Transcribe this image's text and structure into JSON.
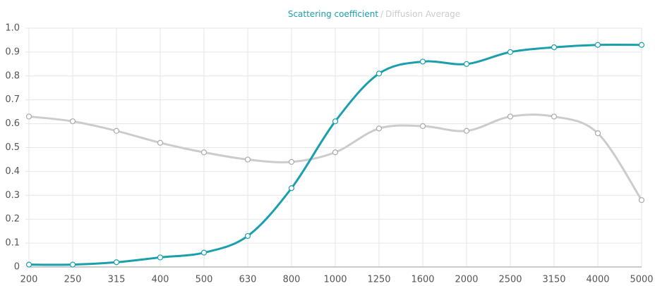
{
  "chart_data": {
    "type": "line",
    "legend_separator": "/",
    "categories": [
      "200",
      "250",
      "315",
      "400",
      "500",
      "630",
      "800",
      "1000",
      "1250",
      "1600",
      "2000",
      "2500",
      "3150",
      "4000",
      "5000"
    ],
    "series": [
      {
        "name": "Scattering coefficient",
        "color": "#1a9fad",
        "values": [
          0.01,
          0.01,
          0.02,
          0.04,
          0.06,
          0.13,
          0.33,
          0.61,
          0.81,
          0.86,
          0.85,
          0.9,
          0.92,
          0.93,
          0.93
        ]
      },
      {
        "name": "Diffusion Average",
        "color": "#cccccc",
        "values": [
          0.63,
          0.61,
          0.57,
          0.52,
          0.48,
          0.45,
          0.44,
          0.48,
          0.58,
          0.59,
          0.57,
          0.63,
          0.63,
          0.56,
          0.28
        ]
      }
    ],
    "ylim": [
      0,
      1
    ],
    "yticks": [
      0,
      0.1,
      0.2,
      0.3,
      0.4,
      0.5,
      0.6,
      0.7,
      0.8,
      0.9,
      {
        "value": 1,
        "label": "1.0"
      }
    ],
    "grid": true
  }
}
